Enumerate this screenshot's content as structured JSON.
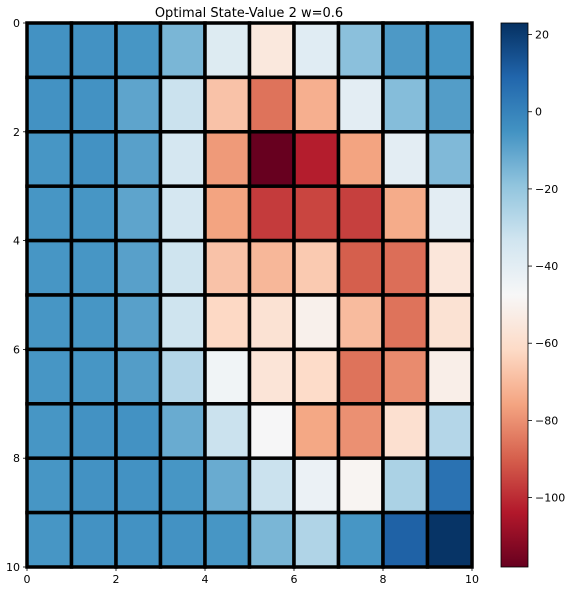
{
  "chart_data": {
    "type": "heatmap",
    "title": "Optimal State-Value 2 w=0.6",
    "xlabel": "",
    "ylabel": "",
    "xlim": [
      0,
      10
    ],
    "ylim": [
      10,
      0
    ],
    "x_ticks": [
      "0",
      "2",
      "4",
      "6",
      "8",
      "10"
    ],
    "y_ticks": [
      "0",
      "2",
      "4",
      "6",
      "8",
      "10"
    ],
    "colormap": "RdBu",
    "color_range": [
      -118,
      23
    ],
    "colorbar_ticks": [
      "20",
      "0",
      "−20",
      "−40",
      "−60",
      "−80",
      "−100"
    ],
    "colorbar_values": [
      20,
      0,
      -20,
      -40,
      -60,
      -80,
      -100
    ],
    "grid": true,
    "values": [
      [
        -5,
        -5,
        -6,
        -15,
        -38,
        -55,
        -39,
        -18,
        -7,
        -6
      ],
      [
        -5,
        -5,
        -10,
        -32,
        -68,
        -86,
        -73,
        -40,
        -17,
        -8
      ],
      [
        -6,
        -5,
        -9,
        -35,
        -78,
        -118,
        -103,
        -76,
        -40,
        -16
      ],
      [
        -6,
        -6,
        -10,
        -35,
        -76,
        -97,
        -95,
        -96,
        -74,
        -40
      ],
      [
        -6,
        -6,
        -9,
        -33,
        -68,
        -71,
        -66,
        -90,
        -87,
        -56
      ],
      [
        -6,
        -6,
        -9,
        -33,
        -62,
        -58,
        -51,
        -70,
        -86,
        -58
      ],
      [
        -6,
        -6,
        -8,
        -27,
        -45,
        -57,
        -61,
        -86,
        -81,
        -52
      ],
      [
        -6,
        -5,
        -5,
        -12,
        -32,
        -47,
        -75,
        -80,
        -59,
        -27
      ],
      [
        -6,
        -5,
        -5,
        -6,
        -12,
        -32,
        -43,
        -49,
        -25,
        5
      ],
      [
        -6,
        -5,
        -5,
        -5,
        -6,
        -15,
        -26,
        -6,
        10,
        22
      ]
    ]
  }
}
